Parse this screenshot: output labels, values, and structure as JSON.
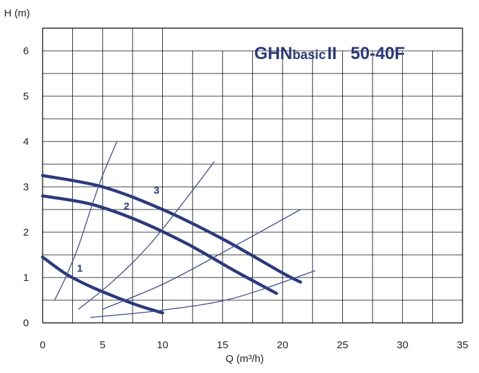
{
  "chart_data": {
    "type": "line",
    "title": {
      "main": "GHN",
      "sub": "basic",
      "suffix": "II",
      "model": "50-40F"
    },
    "xlabel": "Q (m³/h)",
    "ylabel": "H (m)",
    "xlim": [
      0,
      35
    ],
    "ylim": [
      0,
      6.5
    ],
    "x_ticks": [
      0,
      5,
      10,
      15,
      20,
      25,
      30,
      35
    ],
    "y_ticks": [
      0,
      1,
      2,
      3,
      4,
      5,
      6
    ],
    "grid": true,
    "colors": {
      "pump_curve": "#2b3a7c",
      "system_curve": "#3a4a8c",
      "grid": "#000000",
      "title": "#2b3a7c"
    },
    "series": [
      {
        "name": "1",
        "kind": "pump",
        "x": [
          0,
          2,
          4,
          6,
          8,
          10
        ],
        "y": [
          1.45,
          1.07,
          0.8,
          0.58,
          0.38,
          0.22
        ]
      },
      {
        "name": "2",
        "kind": "pump",
        "x": [
          0,
          4,
          8,
          12,
          16,
          19.5
        ],
        "y": [
          2.8,
          2.62,
          2.25,
          1.75,
          1.15,
          0.65
        ]
      },
      {
        "name": "3",
        "kind": "pump",
        "x": [
          0,
          5,
          10,
          15,
          20,
          21.5
        ],
        "y": [
          3.25,
          3.0,
          2.5,
          1.85,
          1.1,
          0.9
        ]
      },
      {
        "kind": "system",
        "x": [
          1,
          2,
          3,
          4,
          5,
          6.2
        ],
        "y": [
          0.5,
          1.05,
          1.7,
          2.5,
          3.25,
          4.0
        ]
      },
      {
        "kind": "system",
        "x": [
          3,
          6,
          9,
          12,
          14.3
        ],
        "y": [
          0.3,
          0.95,
          1.75,
          2.75,
          3.55
        ]
      },
      {
        "kind": "system",
        "x": [
          5,
          10,
          15,
          21.5
        ],
        "y": [
          0.3,
          0.85,
          1.55,
          2.5
        ]
      },
      {
        "kind": "system",
        "x": [
          4,
          10,
          16,
          22.7
        ],
        "y": [
          0.12,
          0.28,
          0.55,
          1.15
        ]
      }
    ],
    "curve_labels": [
      {
        "text": "1",
        "x": 3.1,
        "y": 1.13
      },
      {
        "text": "2",
        "x": 7.0,
        "y": 2.5
      },
      {
        "text": "3",
        "x": 9.5,
        "y": 2.85
      }
    ]
  }
}
